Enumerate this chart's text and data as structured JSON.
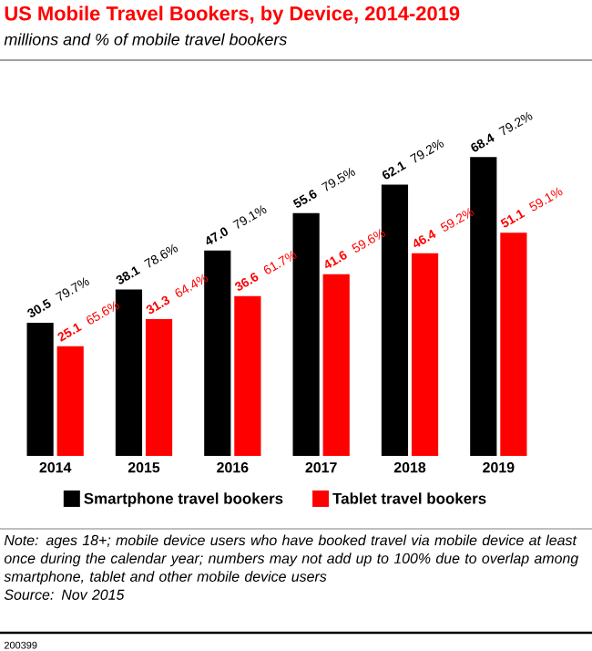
{
  "chart_data": {
    "type": "bar",
    "title": "US Mobile Travel Bookers, by Device, 2014-2019",
    "subtitle": "millions and % of mobile travel bookers",
    "categories": [
      "2014",
      "2015",
      "2016",
      "2017",
      "2018",
      "2019"
    ],
    "series": [
      {
        "name": "Smartphone travel bookers",
        "color": "#000000",
        "values": [
          30.5,
          38.1,
          47.0,
          55.6,
          62.1,
          68.4
        ],
        "value_labels": [
          "**30.5** 79.7%",
          "**38.1** 78.6%",
          "**47.0** 79.1%",
          "**55.6** 79.5%",
          "**62.1** 79.2%",
          "**68.4** 79.2%"
        ]
      },
      {
        "name": "Tablet travel bookers",
        "color": "#ff0000",
        "values": [
          25.1,
          31.3,
          36.6,
          41.6,
          46.4,
          51.1
        ],
        "value_labels": [
          "**25.1** 65.6%",
          "**31.3** 64.4%",
          "**36.6** 61.7%",
          "**41.6** 59.6%",
          "**46.4** 59.2%",
          "**51.1** 59.1%"
        ]
      }
    ],
    "legend": "bottom",
    "annotations": [
      "Note: ages 18+; mobile device users who have booked travel via mobile device at least once during the calendar year; numbers may not add up to 100% due to overlap among smartphone, tablet and other mobile device users",
      "Source: Nov 2015",
      "200399"
    ]
  }
}
